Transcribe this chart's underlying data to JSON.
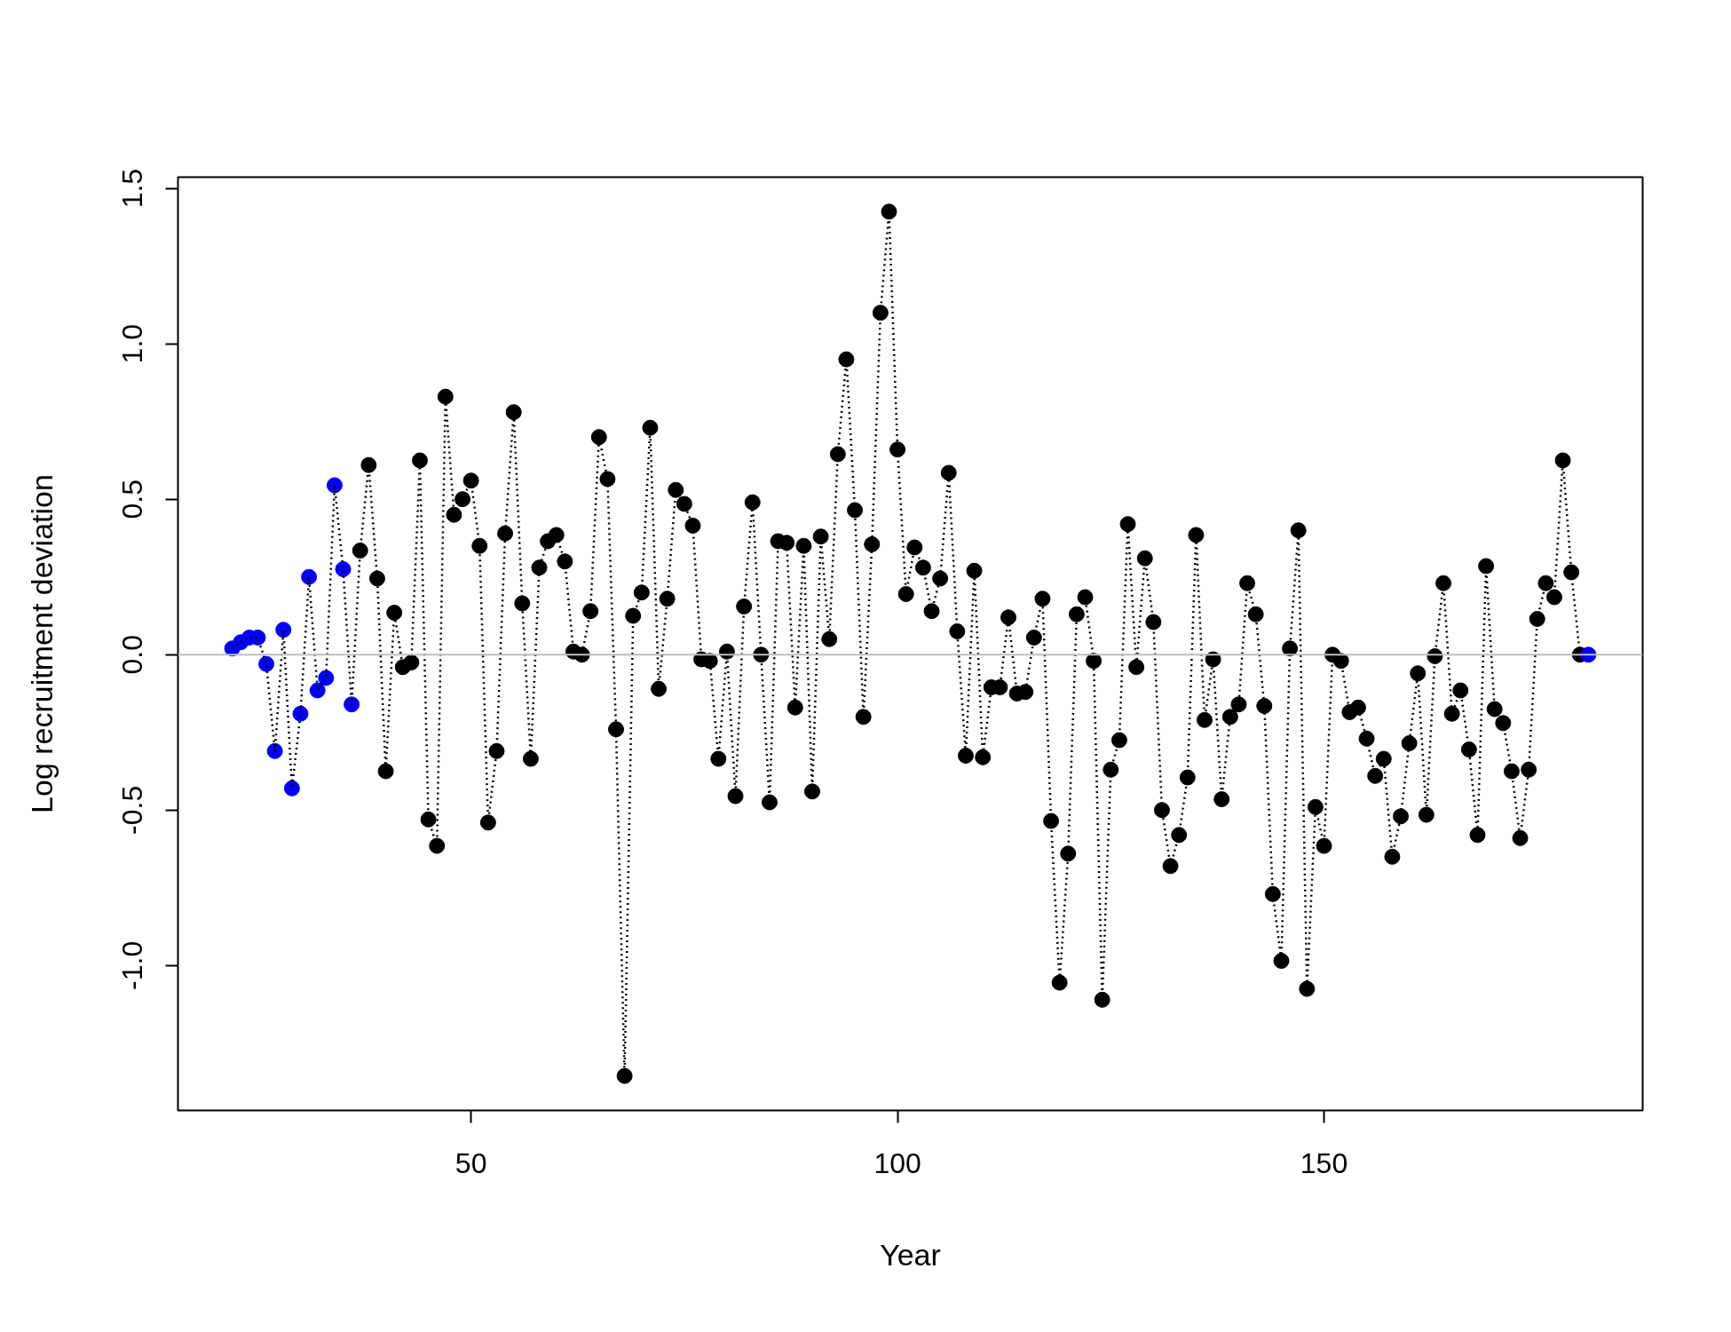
{
  "chart_data": {
    "type": "line",
    "xlabel": "Year",
    "ylabel": "Log recruitment deviation",
    "xlim": [
      15.64,
      187.36
    ],
    "ylim": [
      -1.466,
      1.536
    ],
    "xticks": [
      50,
      100,
      150
    ],
    "yticks": [
      {
        "value": -1.0,
        "label": "-1.0"
      },
      {
        "value": -0.5,
        "label": "-0.5"
      },
      {
        "value": 0,
        "label": "0.0"
      },
      {
        "value": 0.5,
        "label": "0.5"
      },
      {
        "value": 1.0,
        "label": "1.0"
      },
      {
        "value": 1.5,
        "label": "1.5"
      }
    ],
    "grid": false,
    "ref_lines": [
      {
        "axis": "y",
        "value": 0,
        "color": "#bebebe"
      }
    ],
    "series": [
      {
        "color": "#000000",
        "marker": "circle",
        "line_style": "dotted",
        "x": [
          22,
          23,
          24,
          25,
          26,
          27,
          28,
          29,
          30,
          31,
          32,
          33,
          34,
          35,
          36,
          37,
          38,
          39,
          40,
          41,
          42,
          43,
          44,
          45,
          46,
          47,
          48,
          49,
          50,
          51,
          52,
          53,
          54,
          55,
          56,
          57,
          58,
          59,
          60,
          61,
          62,
          63,
          64,
          65,
          66,
          67,
          68,
          69,
          70,
          71,
          72,
          73,
          74,
          75,
          76,
          77,
          78,
          79,
          80,
          81,
          82,
          83,
          84,
          85,
          86,
          87,
          88,
          89,
          90,
          91,
          92,
          93,
          94,
          95,
          96,
          97,
          98,
          99,
          100,
          101,
          102,
          103,
          104,
          105,
          106,
          107,
          108,
          109,
          110,
          111,
          112,
          113,
          114,
          115,
          116,
          117,
          118,
          119,
          120,
          121,
          122,
          123,
          124,
          125,
          126,
          127,
          128,
          129,
          130,
          131,
          132,
          133,
          134,
          135,
          136,
          137,
          138,
          139,
          140,
          141,
          142,
          143,
          144,
          145,
          146,
          147,
          148,
          149,
          150,
          151,
          152,
          153,
          154,
          155,
          156,
          157,
          158,
          159,
          160,
          161,
          162,
          163,
          164,
          165,
          166,
          167,
          168,
          169,
          170,
          171,
          172,
          173,
          174,
          175,
          176,
          177,
          178,
          179,
          180,
          181
        ],
        "values": [
          0.02,
          0.04,
          0.055,
          0.055,
          -0.03,
          -0.31,
          0.08,
          -0.43,
          -0.19,
          0.25,
          -0.115,
          -0.075,
          0.545,
          0.275,
          -0.16,
          0.335,
          0.61,
          0.245,
          -0.375,
          0.135,
          -0.04,
          -0.025,
          0.625,
          -0.53,
          -0.615,
          0.83,
          0.45,
          0.5,
          0.56,
          0.35,
          -0.54,
          -0.31,
          0.39,
          0.78,
          0.165,
          -0.335,
          0.28,
          0.365,
          0.385,
          0.3,
          0.01,
          0.0,
          0.14,
          0.7,
          0.565,
          -0.24,
          -1.355,
          0.125,
          0.2,
          0.73,
          -0.11,
          0.18,
          0.53,
          0.485,
          0.415,
          -0.015,
          -0.02,
          -0.335,
          0.01,
          -0.455,
          0.155,
          0.49,
          0.0,
          -0.475,
          0.365,
          0.36,
          -0.17,
          0.35,
          -0.44,
          0.38,
          0.05,
          0.645,
          0.95,
          0.465,
          -0.2,
          0.355,
          1.1,
          1.425,
          0.66,
          0.195,
          0.345,
          0.28,
          0.14,
          0.245,
          0.585,
          0.075,
          -0.325,
          0.27,
          -0.33,
          -0.105,
          -0.105,
          0.12,
          -0.125,
          -0.12,
          0.055,
          0.18,
          -0.535,
          -1.055,
          -0.64,
          0.13,
          0.185,
          -0.02,
          -1.11,
          -0.37,
          -0.275,
          0.42,
          -0.04,
          0.31,
          0.105,
          -0.5,
          -0.68,
          -0.58,
          -0.395,
          0.385,
          -0.21,
          -0.015,
          -0.465,
          -0.2,
          -0.16,
          0.23,
          0.13,
          -0.165,
          -0.77,
          -0.985,
          0.02,
          0.4,
          -1.075,
          -0.49,
          -0.615,
          0.0,
          -0.02,
          -0.185,
          -0.17,
          -0.27,
          -0.39,
          -0.335,
          -0.65,
          -0.52,
          -0.285,
          -0.06,
          -0.515,
          -0.005,
          0.23,
          -0.19,
          -0.115,
          -0.305,
          -0.58,
          0.285,
          -0.175,
          -0.22,
          -0.375,
          -0.59,
          -0.37,
          0.115,
          0.23,
          0.185,
          0.625,
          0.265,
          0.0,
          0.0
        ],
        "colors": [
          "#0000ff",
          "#0000ff",
          "#0000ff",
          "#0000ff",
          "#0000ff",
          "#0000ff",
          "#0000ff",
          "#0000ff",
          "#0000ff",
          "#0000ff",
          "#0000ff",
          "#0000ff",
          "#0000ff",
          "#0000ff",
          "#0000ff",
          "#000000",
          "#000000",
          "#000000",
          "#000000",
          "#000000",
          "#000000",
          "#000000",
          "#000000",
          "#000000",
          "#000000",
          "#000000",
          "#000000",
          "#000000",
          "#000000",
          "#000000",
          "#000000",
          "#000000",
          "#000000",
          "#000000",
          "#000000",
          "#000000",
          "#000000",
          "#000000",
          "#000000",
          "#000000",
          "#000000",
          "#000000",
          "#000000",
          "#000000",
          "#000000",
          "#000000",
          "#000000",
          "#000000",
          "#000000",
          "#000000",
          "#000000",
          "#000000",
          "#000000",
          "#000000",
          "#000000",
          "#000000",
          "#000000",
          "#000000",
          "#000000",
          "#000000",
          "#000000",
          "#000000",
          "#000000",
          "#000000",
          "#000000",
          "#000000",
          "#000000",
          "#000000",
          "#000000",
          "#000000",
          "#000000",
          "#000000",
          "#000000",
          "#000000",
          "#000000",
          "#000000",
          "#000000",
          "#000000",
          "#000000",
          "#000000",
          "#000000",
          "#000000",
          "#000000",
          "#000000",
          "#000000",
          "#000000",
          "#000000",
          "#000000",
          "#000000",
          "#000000",
          "#000000",
          "#000000",
          "#000000",
          "#000000",
          "#000000",
          "#000000",
          "#000000",
          "#000000",
          "#000000",
          "#000000",
          "#000000",
          "#000000",
          "#000000",
          "#000000",
          "#000000",
          "#000000",
          "#000000",
          "#000000",
          "#000000",
          "#000000",
          "#000000",
          "#000000",
          "#000000",
          "#000000",
          "#000000",
          "#000000",
          "#000000",
          "#000000",
          "#000000",
          "#000000",
          "#000000",
          "#000000",
          "#000000",
          "#000000",
          "#000000",
          "#000000",
          "#000000",
          "#000000",
          "#000000",
          "#000000",
          "#000000",
          "#000000",
          "#000000",
          "#000000",
          "#000000",
          "#000000",
          "#000000",
          "#000000",
          "#000000",
          "#000000",
          "#000000",
          "#000000",
          "#000000",
          "#000000",
          "#000000",
          "#000000",
          "#000000",
          "#000000",
          "#000000",
          "#000000",
          "#000000",
          "#000000",
          "#000000",
          "#000000",
          "#000000",
          "#000000",
          "#000000",
          "#000000",
          "#000000",
          "#0000ff"
        ]
      }
    ]
  }
}
